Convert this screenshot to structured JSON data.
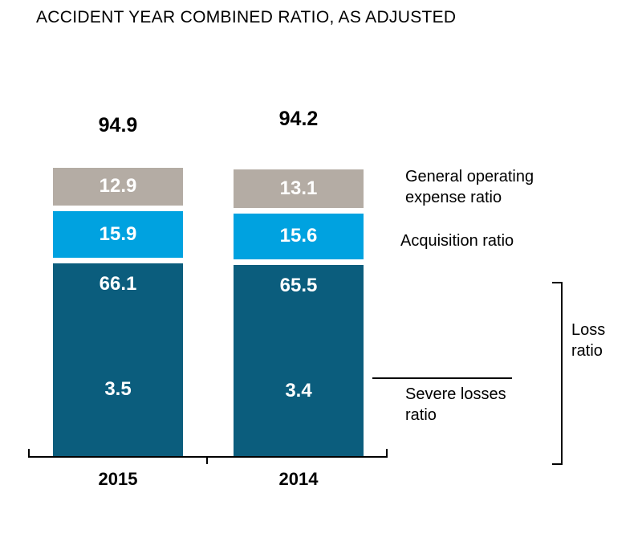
{
  "title": "ACCIDENT YEAR COMBINED RATIO, AS ADJUSTED",
  "chart_data": {
    "type": "bar",
    "stacked": true,
    "categories": [
      "2015",
      "2014"
    ],
    "totals": [
      "94.9",
      "94.2"
    ],
    "series": [
      {
        "name": "General operating expense ratio",
        "color": "#b4aca4",
        "values": [
          "12.9",
          "13.1"
        ]
      },
      {
        "name": "Acquisition ratio",
        "color": "#00a2e0",
        "values": [
          "15.9",
          "15.6"
        ]
      },
      {
        "name": "Loss ratio",
        "color": "#0b5d7d",
        "values": [
          "66.1",
          "65.5"
        ]
      }
    ],
    "sub_series": {
      "name": "Severe losses ratio",
      "parent": "Loss ratio",
      "values": [
        "3.5",
        "3.4"
      ]
    },
    "legend_position": "right",
    "grid": false,
    "value_label_color": "#ffffff"
  },
  "labels": {
    "general_operating": "General operating expense ratio",
    "acquisition": "Acquisition ratio",
    "loss": "Loss ratio",
    "severe": "Severe losses ratio"
  }
}
